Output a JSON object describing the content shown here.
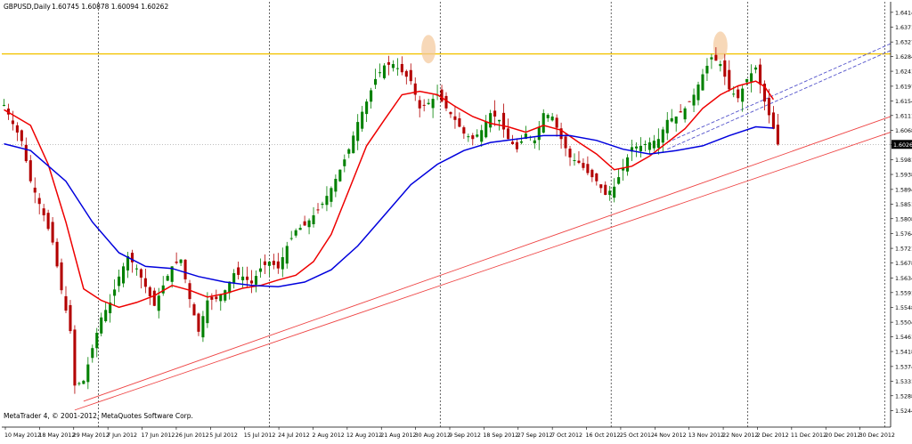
{
  "chart_data": {
    "type": "candlestick",
    "title": "GBPUSD,Daily",
    "ohlc_header": "1.60745 1.60878 1.60094 1.60262",
    "footer": "MetaTrader 4, © 2001-2012, MetaQuotes Software Corp.",
    "current_price_label": "1.60262",
    "ylim": [
      1.5196,
      1.6445
    ],
    "y_ticks": [
      "1.64140",
      "1.63710",
      "1.63270",
      "1.62840",
      "1.62410",
      "1.61970",
      "1.61540",
      "1.61110",
      "1.60680",
      "1.60250",
      "1.59810",
      "1.59380",
      "1.58940",
      "1.58510",
      "1.58080",
      "1.57640",
      "1.57210",
      "1.56780",
      "1.56340",
      "1.55910",
      "1.55480",
      "1.55040",
      "1.54610",
      "1.54180",
      "1.53740",
      "1.53310",
      "1.52880",
      "1.52440"
    ],
    "x_ticks": [
      "10 May 2012",
      "18 May 2012",
      "29 May 2012",
      "7 Jun 2012",
      "17 Jun 2012",
      "26 Jun 2012",
      "5 Jul 2012",
      "15 Jul 2012",
      "24 Jul 2012",
      "2 Aug 2012",
      "12 Aug 2012",
      "21 Aug 2012",
      "30 Aug 2012",
      "9 Sep 2012",
      "18 Sep 2012",
      "27 Sep 2012",
      "7 Oct 2012",
      "16 Oct 2012",
      "25 Oct 2012",
      "4 Nov 2012",
      "13 Nov 2012",
      "22 Nov 2012",
      "2 Dec 2012",
      "11 Dec 2012",
      "20 Dec 2012",
      "30 Dec 2012"
    ],
    "separator_ticks": [
      2,
      7,
      12,
      17,
      21,
      25
    ],
    "resistance_level": 1.6292,
    "candle_close_path": [
      [
        0,
        1.6142
      ],
      [
        2,
        1.6086
      ],
      [
        4,
        1.6036
      ],
      [
        6,
        1.5918
      ],
      [
        9,
        1.5818
      ],
      [
        11,
        1.5738
      ],
      [
        13,
        1.5598
      ],
      [
        15,
        1.5478
      ],
      [
        16,
        1.5318
      ],
      [
        18,
        1.5332
      ],
      [
        20,
        1.5428
      ],
      [
        22,
        1.5518
      ],
      [
        24,
        1.5562
      ],
      [
        26,
        1.5638
      ],
      [
        28,
        1.5698
      ],
      [
        30,
        1.5662
      ],
      [
        32,
        1.5608
      ],
      [
        34,
        1.5552
      ],
      [
        36,
        1.5612
      ],
      [
        38,
        1.5668
      ],
      [
        40,
        1.5688
      ],
      [
        42,
        1.5572
      ],
      [
        44,
        1.5476
      ],
      [
        46,
        1.5568
      ],
      [
        48,
        1.5572
      ],
      [
        50,
        1.5598
      ],
      [
        52,
        1.5648
      ],
      [
        54,
        1.5638
      ],
      [
        56,
        1.5618
      ],
      [
        58,
        1.5662
      ],
      [
        60,
        1.5682
      ],
      [
        62,
        1.5662
      ],
      [
        64,
        1.5728
      ],
      [
        66,
        1.5774
      ],
      [
        68,
        1.5788
      ],
      [
        70,
        1.5818
      ],
      [
        72,
        1.5852
      ],
      [
        74,
        1.5898
      ],
      [
        76,
        1.5952
      ],
      [
        78,
        1.6012
      ],
      [
        80,
        1.6092
      ],
      [
        82,
        1.6152
      ],
      [
        84,
        1.6218
      ],
      [
        86,
        1.6258
      ],
      [
        88,
        1.6262
      ],
      [
        90,
        1.6238
      ],
      [
        92,
        1.6212
      ],
      [
        94,
        1.6132
      ],
      [
        96,
        1.6148
      ],
      [
        98,
        1.6172
      ],
      [
        100,
        1.6132
      ],
      [
        102,
        1.6098
      ],
      [
        104,
        1.6058
      ],
      [
        106,
        1.6042
      ],
      [
        108,
        1.6068
      ],
      [
        110,
        1.6118
      ],
      [
        112,
        1.6098
      ],
      [
        114,
        1.6042
      ],
      [
        116,
        1.6012
      ],
      [
        118,
        1.6058
      ],
      [
        120,
        1.6038
      ],
      [
        122,
        1.6118
      ],
      [
        124,
        1.6108
      ],
      [
        126,
        1.6042
      ],
      [
        128,
        1.5988
      ],
      [
        130,
        1.5972
      ],
      [
        132,
        1.5942
      ],
      [
        134,
        1.5918
      ],
      [
        136,
        1.5878
      ],
      [
        138,
        1.5902
      ],
      [
        140,
        1.5958
      ],
      [
        142,
        1.6018
      ],
      [
        144,
        1.6022
      ],
      [
        146,
        1.6032
      ],
      [
        148,
        1.6042
      ],
      [
        150,
        1.6098
      ],
      [
        152,
        1.6108
      ],
      [
        154,
        1.6132
      ],
      [
        156,
        1.6172
      ],
      [
        158,
        1.6232
      ],
      [
        160,
        1.6282
      ],
      [
        162,
        1.6262
      ],
      [
        164,
        1.6188
      ],
      [
        166,
        1.6162
      ],
      [
        168,
        1.6218
      ],
      [
        170,
        1.6252
      ],
      [
        172,
        1.6152
      ],
      [
        174,
        1.6072
      ],
      [
        175,
        1.6026
      ]
    ],
    "series": [
      {
        "name": "",
        "color": "#ee0000",
        "values": [
          [
            0,
            1.6128
          ],
          [
            6,
            1.6082
          ],
          [
            10,
            1.5968
          ],
          [
            14,
            1.5798
          ],
          [
            18,
            1.5602
          ],
          [
            22,
            1.5568
          ],
          [
            26,
            1.5548
          ],
          [
            30,
            1.5562
          ],
          [
            34,
            1.5582
          ],
          [
            38,
            1.5612
          ],
          [
            42,
            1.5598
          ],
          [
            46,
            1.5578
          ],
          [
            50,
            1.5588
          ],
          [
            54,
            1.5604
          ],
          [
            58,
            1.5612
          ],
          [
            62,
            1.5628
          ],
          [
            66,
            1.5642
          ],
          [
            70,
            1.5682
          ],
          [
            74,
            1.5762
          ],
          [
            78,
            1.5892
          ],
          [
            82,
            1.6022
          ],
          [
            86,
            1.6098
          ],
          [
            90,
            1.6172
          ],
          [
            94,
            1.6182
          ],
          [
            98,
            1.6172
          ],
          [
            102,
            1.6138
          ],
          [
            106,
            1.6108
          ],
          [
            110,
            1.6088
          ],
          [
            114,
            1.6078
          ],
          [
            118,
            1.6062
          ],
          [
            122,
            1.6082
          ],
          [
            126,
            1.6068
          ],
          [
            130,
            1.6032
          ],
          [
            134,
            1.5998
          ],
          [
            138,
            1.5952
          ],
          [
            142,
            1.5962
          ],
          [
            146,
            1.5992
          ],
          [
            150,
            1.6032
          ],
          [
            154,
            1.6072
          ],
          [
            158,
            1.6132
          ],
          [
            162,
            1.6172
          ],
          [
            166,
            1.6198
          ],
          [
            170,
            1.6212
          ],
          [
            172,
            1.6196
          ],
          [
            174,
            1.6158
          ]
        ]
      },
      {
        "name": "",
        "color": "#0000dd",
        "values": [
          [
            0,
            1.6028
          ],
          [
            6,
            1.6008
          ],
          [
            14,
            1.5918
          ],
          [
            20,
            1.5798
          ],
          [
            26,
            1.5708
          ],
          [
            32,
            1.5668
          ],
          [
            38,
            1.5662
          ],
          [
            44,
            1.5638
          ],
          [
            50,
            1.5622
          ],
          [
            56,
            1.5612
          ],
          [
            62,
            1.5608
          ],
          [
            68,
            1.5622
          ],
          [
            74,
            1.5658
          ],
          [
            80,
            1.5728
          ],
          [
            86,
            1.5818
          ],
          [
            92,
            1.5908
          ],
          [
            98,
            1.5968
          ],
          [
            104,
            1.6008
          ],
          [
            110,
            1.6032
          ],
          [
            116,
            1.6042
          ],
          [
            122,
            1.6052
          ],
          [
            128,
            1.6052
          ],
          [
            134,
            1.6038
          ],
          [
            140,
            1.6012
          ],
          [
            146,
            1.5998
          ],
          [
            152,
            1.6008
          ],
          [
            158,
            1.6022
          ],
          [
            164,
            1.6052
          ],
          [
            170,
            1.6078
          ],
          [
            174,
            1.6074
          ]
        ]
      }
    ],
    "trendlines": [
      {
        "color": "#ee4444",
        "dash": false,
        "from": [
          16,
          1.5246
        ],
        "to": [
          201,
          1.6062
        ]
      },
      {
        "color": "#ee4444",
        "dash": false,
        "from": [
          18,
          1.5272
        ],
        "to": [
          201,
          1.6108
        ]
      },
      {
        "color": "#5555cc",
        "dash": true,
        "from": [
          150,
          1.6012
        ],
        "to": [
          201,
          1.6302
        ]
      },
      {
        "color": "#5555cc",
        "dash": true,
        "from": [
          150,
          1.6032
        ],
        "to": [
          201,
          1.6322
        ]
      }
    ],
    "highlights": [
      {
        "x": 96,
        "y": 1.6306
      },
      {
        "x": 162,
        "y": 1.6316
      }
    ],
    "bar_count": 201
  }
}
